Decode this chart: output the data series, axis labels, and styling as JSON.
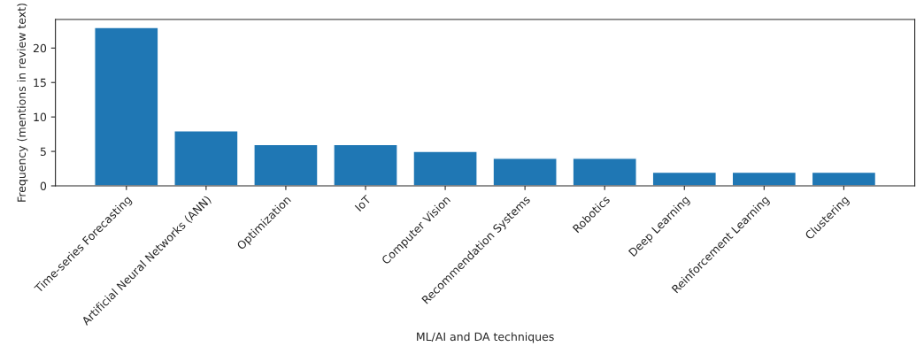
{
  "chart_data": {
    "type": "bar",
    "xlabel": "ML/AI and DA techniques",
    "ylabel": "Frequency (mentions in review text)",
    "categories": [
      "Time-series Forecasting",
      "Artificial Neural Networks (ANN)",
      "Optimization",
      "IoT",
      "Computer Vision",
      "Recommendation Systems",
      "Robotics",
      "Deep Learning",
      "Reinforcement Learning",
      "Clustering"
    ],
    "values": [
      23,
      8,
      6,
      6,
      5,
      4,
      4,
      2,
      2,
      2
    ],
    "color": "#1f77b4",
    "ylim": [
      0,
      24.15
    ],
    "yticks": [
      0,
      5,
      10,
      15,
      20
    ],
    "grid": false,
    "legend": false
  }
}
